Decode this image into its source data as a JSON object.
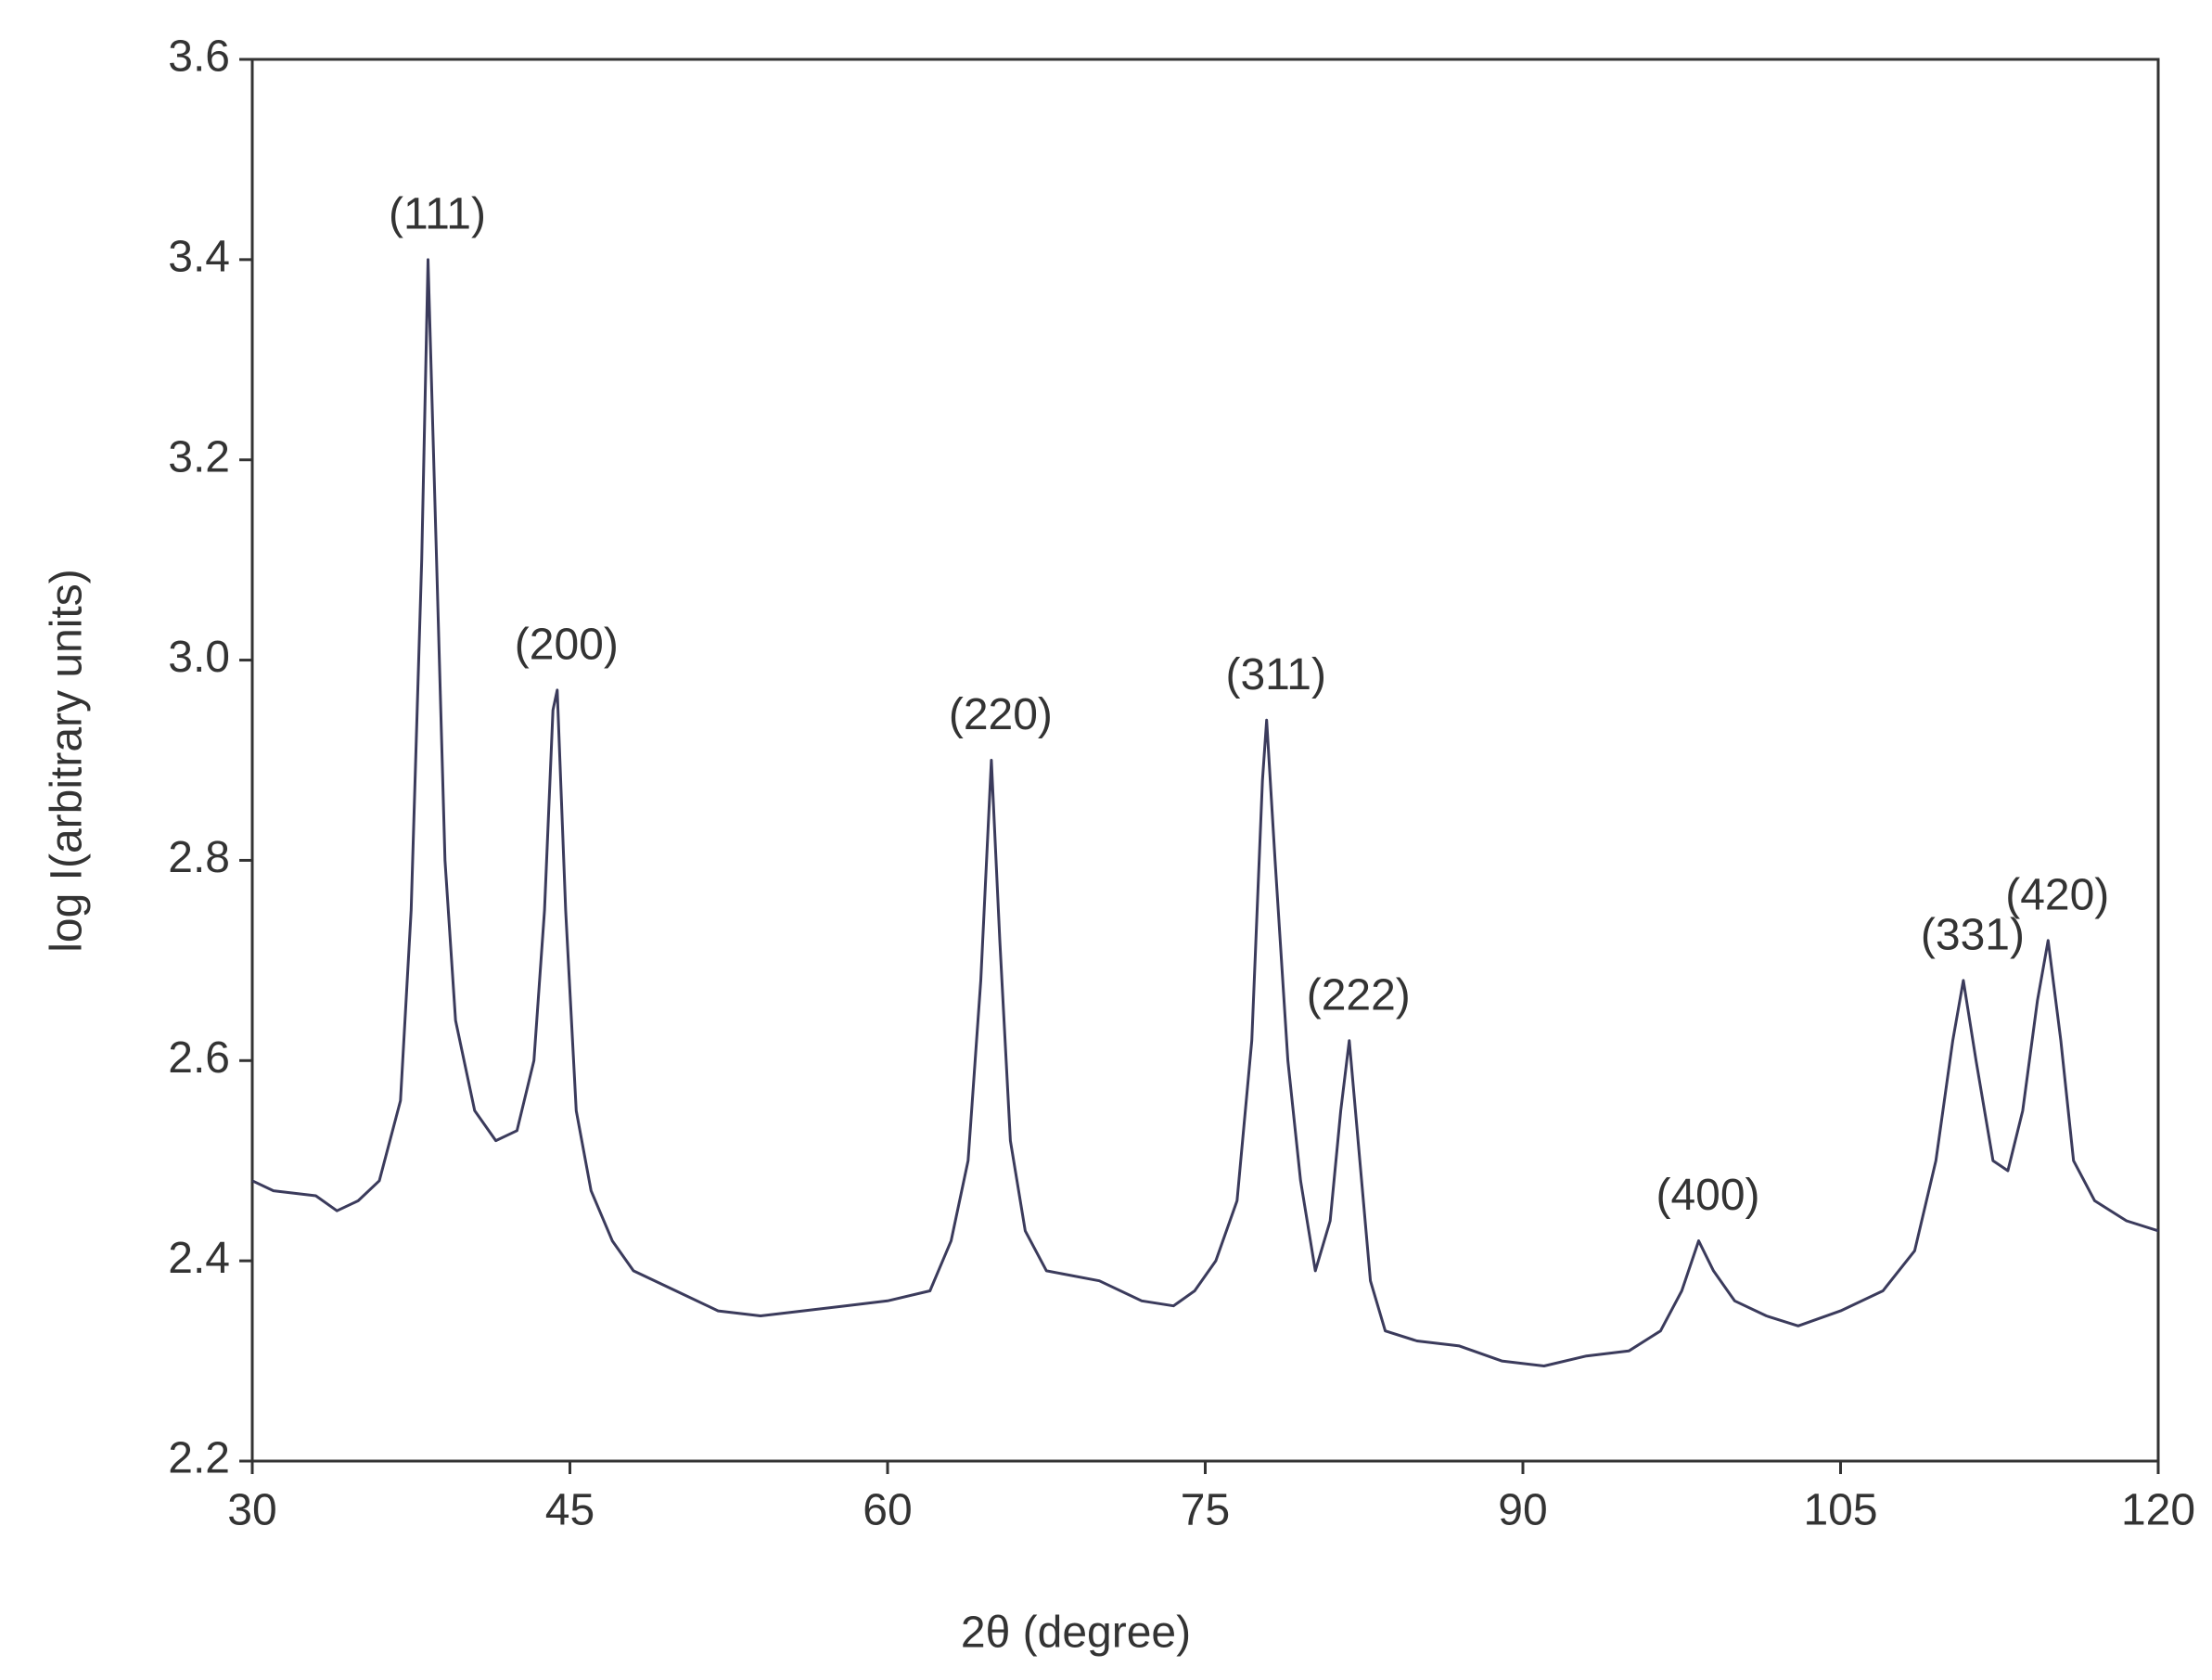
{
  "chart_data": {
    "type": "line",
    "xlabel": "2θ (degree)",
    "ylabel": "log I(arbitrary units)",
    "xlim": [
      30,
      120
    ],
    "xticks": [
      30,
      45,
      60,
      75,
      90,
      105,
      120
    ],
    "ylim": [
      2.2,
      3.6
    ],
    "yticks": [
      2.2,
      2.4,
      2.6,
      2.8,
      {
        "value": 3,
        "label": "3.0"
      },
      3.2,
      3.4,
      3.6
    ],
    "grid": false,
    "series": [
      {
        "color": "#3b3b5c",
        "x": [
          30,
          31,
          33,
          34,
          35,
          36,
          37,
          37.5,
          38,
          38.3,
          38.7,
          39.1,
          39.6,
          40.5,
          41.5,
          42.5,
          43.3,
          43.8,
          44.2,
          44.4,
          44.8,
          45.3,
          46,
          47,
          48,
          50,
          52,
          54,
          56,
          58,
          60,
          62,
          63,
          63.8,
          64.4,
          64.9,
          65.3,
          65.8,
          66.5,
          67.5,
          70,
          72,
          73.5,
          74.5,
          75.5,
          76.5,
          77.2,
          77.7,
          77.9,
          78.3,
          78.9,
          79.5,
          80.2,
          80.9,
          81.4,
          81.8,
          82.3,
          82.8,
          83.5,
          85,
          87,
          89,
          91,
          93,
          95,
          96.5,
          97.5,
          98.3,
          99,
          100,
          101.5,
          103,
          105,
          107,
          108.5,
          109.5,
          110.3,
          110.8,
          111.4,
          112.2,
          112.9,
          113.6,
          114.3,
          114.8,
          115.4,
          116,
          117,
          118.5,
          120
        ],
        "values": [
          2.48,
          2.47,
          2.465,
          2.45,
          2.46,
          2.48,
          2.56,
          2.75,
          3.1,
          3.4,
          3.1,
          2.8,
          2.64,
          2.55,
          2.52,
          2.53,
          2.6,
          2.75,
          2.95,
          2.97,
          2.75,
          2.55,
          2.47,
          2.42,
          2.39,
          2.37,
          2.35,
          2.345,
          2.35,
          2.355,
          2.36,
          2.37,
          2.42,
          2.5,
          2.68,
          2.9,
          2.72,
          2.52,
          2.43,
          2.39,
          2.38,
          2.36,
          2.355,
          2.37,
          2.4,
          2.46,
          2.62,
          2.88,
          2.94,
          2.8,
          2.6,
          2.48,
          2.39,
          2.44,
          2.55,
          2.62,
          2.5,
          2.38,
          2.33,
          2.32,
          2.315,
          2.3,
          2.295,
          2.305,
          2.31,
          2.33,
          2.37,
          2.42,
          2.39,
          2.36,
          2.345,
          2.335,
          2.35,
          2.37,
          2.41,
          2.5,
          2.62,
          2.68,
          2.6,
          2.5,
          2.49,
          2.55,
          2.66,
          2.72,
          2.62,
          2.5,
          2.46,
          2.44,
          2.43
        ]
      }
    ],
    "annotations": [
      {
        "text": "(111)",
        "x": 38.3,
        "y": 3.4
      },
      {
        "text": "(200)",
        "x": 44.4,
        "y": 2.97
      },
      {
        "text": "(220)",
        "x": 64.9,
        "y": 2.9
      },
      {
        "text": "(311)",
        "x": 77.9,
        "y": 2.94
      },
      {
        "text": "(222)",
        "x": 81.8,
        "y": 2.62
      },
      {
        "text": "(400)",
        "x": 98.3,
        "y": 2.42
      },
      {
        "text": "(331)",
        "x": 110.8,
        "y": 2.68
      },
      {
        "text": "(420)",
        "x": 114.8,
        "y": 2.72
      }
    ]
  }
}
